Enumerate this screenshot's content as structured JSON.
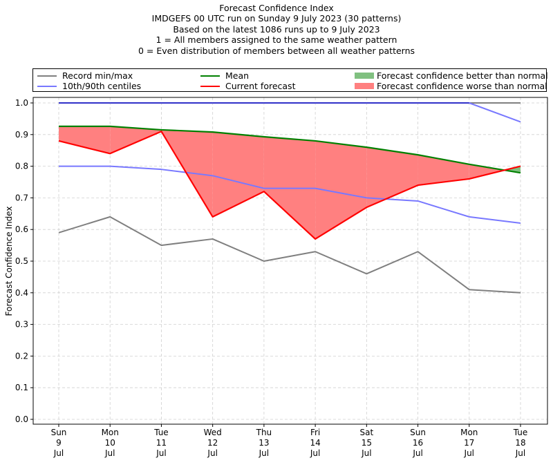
{
  "titles": [
    "Forecast Confidence Index",
    "IMDGEFS 00 UTC run on Sunday 9 July 2023 (30 patterns)",
    "Based on the latest 1086 runs up to 9 July 2023",
    "1 = All members assigned to the same weather pattern",
    "0 = Even distribution of members between all weather patterns"
  ],
  "legend": {
    "record": "Record min/max",
    "centiles": "10th/90th centiles",
    "mean": "Mean",
    "current": "Current forecast",
    "better": "Forecast confidence better than normal",
    "worse": "Forecast confidence worse than normal"
  },
  "colors": {
    "record": "#7f7f7f",
    "centiles": "#7878ff",
    "centiles_top": "#3030c8",
    "mean": "#008000",
    "current": "#ff0000",
    "better": "#80c080",
    "worse": "#ff8080",
    "grid": "#d0d0d0"
  },
  "chart_data": {
    "type": "line",
    "title": "Forecast Confidence Index",
    "xlabel": "",
    "ylabel": "Forecast Confidence Index",
    "ylim": [
      0.0,
      1.0
    ],
    "yticks": [
      "0.0",
      "0.1",
      "0.2",
      "0.3",
      "0.4",
      "0.5",
      "0.6",
      "0.7",
      "0.8",
      "0.9",
      "1.0"
    ],
    "grid": true,
    "legend_position": "top",
    "categories": [
      [
        "Sun",
        "9",
        "Jul"
      ],
      [
        "Mon",
        "10",
        "Jul"
      ],
      [
        "Tue",
        "11",
        "Jul"
      ],
      [
        "Wed",
        "12",
        "Jul"
      ],
      [
        "Thu",
        "13",
        "Jul"
      ],
      [
        "Fri",
        "14",
        "Jul"
      ],
      [
        "Sat",
        "15",
        "Jul"
      ],
      [
        "Sun",
        "16",
        "Jul"
      ],
      [
        "Mon",
        "17",
        "Jul"
      ],
      [
        "Tue",
        "18",
        "Jul"
      ]
    ],
    "series": [
      {
        "name": "Record max",
        "legend": "Record min/max",
        "values": [
          1.0,
          1.0,
          1.0,
          1.0,
          1.0,
          1.0,
          1.0,
          1.0,
          1.0,
          1.0
        ]
      },
      {
        "name": "Record min",
        "legend": "Record min/max",
        "values": [
          0.59,
          0.64,
          0.55,
          0.57,
          0.5,
          0.53,
          0.46,
          0.53,
          0.41,
          0.4
        ]
      },
      {
        "name": "90th centile",
        "legend": "10th/90th centiles",
        "values": [
          1.0,
          1.0,
          1.0,
          1.0,
          1.0,
          1.0,
          1.0,
          1.0,
          1.0,
          0.94
        ]
      },
      {
        "name": "10th centile",
        "legend": "10th/90th centiles",
        "values": [
          0.8,
          0.8,
          0.79,
          0.77,
          0.73,
          0.73,
          0.7,
          0.69,
          0.64,
          0.62
        ]
      },
      {
        "name": "Mean",
        "legend": "Mean",
        "values": [
          0.926,
          0.926,
          0.915,
          0.908,
          0.893,
          0.88,
          0.86,
          0.836,
          0.806,
          0.779
        ]
      },
      {
        "name": "Current forecast",
        "legend": "Current forecast",
        "values": [
          0.88,
          0.84,
          0.91,
          0.64,
          0.72,
          0.57,
          0.67,
          0.74,
          0.76,
          0.8
        ]
      }
    ]
  }
}
